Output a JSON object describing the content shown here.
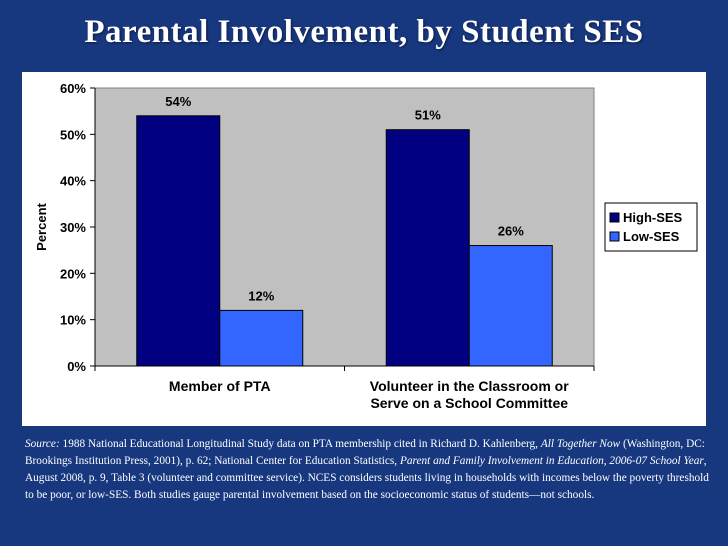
{
  "slide": {
    "title": "Parental Involvement, by Student SES"
  },
  "chart_data": {
    "type": "bar",
    "ylabel": "Percent",
    "ylim": [
      0,
      60
    ],
    "yticks": [
      "0%",
      "10%",
      "20%",
      "30%",
      "40%",
      "50%",
      "60%"
    ],
    "categories": [
      [
        "Member of PTA"
      ],
      [
        "Volunteer in the Classroom or",
        "Serve on a School Committee"
      ]
    ],
    "series": [
      {
        "name": "High-SES",
        "values": [
          54,
          51
        ],
        "labels": [
          "54%",
          "51%"
        ],
        "color": "#000080"
      },
      {
        "name": "Low-SES",
        "values": [
          12,
          26
        ],
        "labels": [
          "12%",
          "26%"
        ],
        "color": "#3366ff"
      }
    ],
    "plot_background": "#c0c0c0",
    "legend": "right",
    "grid": false
  },
  "source": {
    "label": "Source:",
    "text1": " 1988 National Educational Longitudinal Study data on PTA membership cited in Richard D. Kahlenberg, ",
    "title1": "All Together Now",
    "text2": " (Washington, DC: Brookings Institution Press, 2001), p. 62; National Center for Education Statistics, ",
    "title2": "Parent and Family Involvement in Education, 2006-07 School Year",
    "text3": ", August 2008, p. 9, Table 3 (volunteer and committee service). NCES considers students living in households with incomes below the poverty threshold to be poor, or low-SES. Both studies gauge parental involvement based on the socioeconomic status of students—not schools."
  }
}
